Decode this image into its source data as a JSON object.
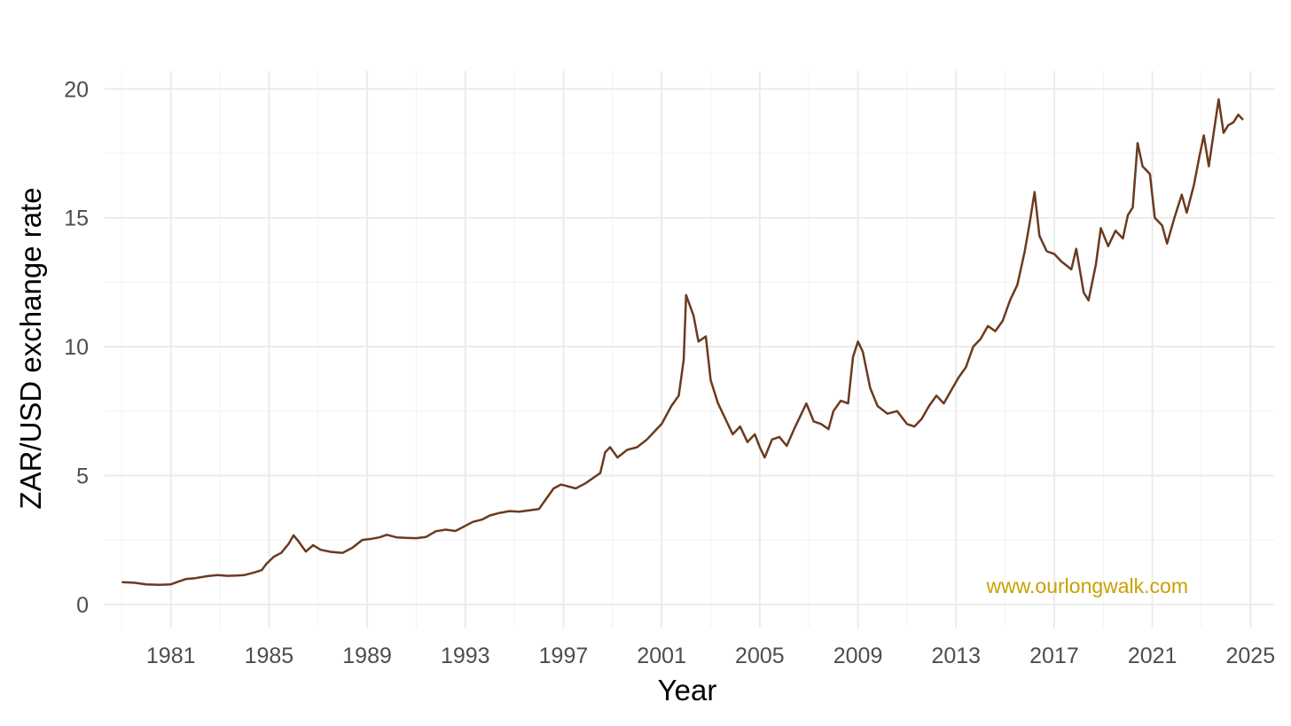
{
  "chart_data": {
    "type": "line",
    "title": "",
    "xlabel": "Year",
    "ylabel": "ZAR/USD exchange rate",
    "xlim": [
      1978.3,
      2026.0
    ],
    "ylim": [
      -0.9,
      20.7
    ],
    "x_ticks": [
      1981,
      1985,
      1989,
      1993,
      1997,
      2001,
      2005,
      2009,
      2013,
      2017,
      2021,
      2025
    ],
    "x_tick_labels": [
      "1981",
      "1985",
      "1989",
      "1993",
      "1997",
      "2001",
      "2005",
      "2009",
      "2013",
      "2017",
      "2021",
      "2025"
    ],
    "y_ticks": [
      0,
      5,
      10,
      15,
      20
    ],
    "y_tick_labels": [
      "0",
      "5",
      "10",
      "15",
      "20"
    ],
    "grid": true,
    "legend": "none",
    "series": [
      {
        "color": "#6b3a1f",
        "x": [
          1979.0,
          1979.5,
          1980.0,
          1980.5,
          1981.0,
          1981.3,
          1981.6,
          1982.0,
          1982.5,
          1982.9,
          1983.3,
          1983.7,
          1984.0,
          1984.4,
          1984.7,
          1984.9,
          1985.2,
          1985.5,
          1985.8,
          1986.0,
          1986.2,
          1986.5,
          1986.8,
          1987.1,
          1987.5,
          1988.0,
          1988.4,
          1988.8,
          1989.2,
          1989.5,
          1989.8,
          1990.2,
          1990.6,
          1991.0,
          1991.4,
          1991.8,
          1992.2,
          1992.6,
          1993.0,
          1993.3,
          1993.7,
          1994.0,
          1994.4,
          1994.8,
          1995.2,
          1995.6,
          1996.0,
          1996.3,
          1996.6,
          1996.9,
          1997.1,
          1997.5,
          1997.9,
          1998.2,
          1998.5,
          1998.7,
          1998.9,
          1999.2,
          1999.6,
          2000.0,
          2000.4,
          2000.8,
          2001.0,
          2001.4,
          2001.7,
          2001.9,
          2002.0,
          2002.3,
          2002.5,
          2002.8,
          2003.0,
          2003.3,
          2003.6,
          2003.9,
          2004.2,
          2004.5,
          2004.8,
          2005.0,
          2005.2,
          2005.5,
          2005.8,
          2006.1,
          2006.4,
          2006.7,
          2006.9,
          2007.2,
          2007.5,
          2007.8,
          2008.0,
          2008.3,
          2008.6,
          2008.8,
          2009.0,
          2009.2,
          2009.5,
          2009.8,
          2010.2,
          2010.6,
          2011.0,
          2011.3,
          2011.6,
          2011.9,
          2012.2,
          2012.5,
          2012.8,
          2013.1,
          2013.4,
          2013.7,
          2014.0,
          2014.3,
          2014.6,
          2014.9,
          2015.2,
          2015.5,
          2015.8,
          2016.0,
          2016.2,
          2016.4,
          2016.7,
          2017.0,
          2017.3,
          2017.7,
          2017.9,
          2018.2,
          2018.4,
          2018.7,
          2018.9,
          2019.2,
          2019.5,
          2019.8,
          2020.0,
          2020.2,
          2020.4,
          2020.6,
          2020.9,
          2021.1,
          2021.4,
          2021.6,
          2021.9,
          2022.2,
          2022.4,
          2022.7,
          2022.9,
          2023.1,
          2023.3,
          2023.5,
          2023.7,
          2023.9,
          2024.1,
          2024.3,
          2024.5,
          2024.7
        ],
        "y": [
          0.86,
          0.84,
          0.78,
          0.76,
          0.78,
          0.88,
          0.98,
          1.02,
          1.1,
          1.14,
          1.11,
          1.12,
          1.14,
          1.24,
          1.33,
          1.58,
          1.85,
          2.0,
          2.35,
          2.68,
          2.45,
          2.05,
          2.3,
          2.12,
          2.04,
          2.0,
          2.2,
          2.5,
          2.55,
          2.6,
          2.7,
          2.6,
          2.58,
          2.57,
          2.62,
          2.84,
          2.9,
          2.85,
          3.05,
          3.2,
          3.3,
          3.45,
          3.55,
          3.62,
          3.6,
          3.65,
          3.7,
          4.1,
          4.5,
          4.65,
          4.6,
          4.5,
          4.7,
          4.9,
          5.1,
          5.9,
          6.1,
          5.7,
          6.0,
          6.1,
          6.4,
          6.8,
          7.0,
          7.7,
          8.1,
          9.5,
          12.0,
          11.2,
          10.2,
          10.4,
          8.7,
          7.8,
          7.2,
          6.6,
          6.9,
          6.3,
          6.6,
          6.1,
          5.7,
          6.4,
          6.5,
          6.15,
          6.8,
          7.4,
          7.8,
          7.1,
          7.0,
          6.8,
          7.5,
          7.9,
          7.8,
          9.6,
          10.2,
          9.8,
          8.4,
          7.7,
          7.4,
          7.5,
          7.0,
          6.9,
          7.2,
          7.7,
          8.1,
          7.8,
          8.3,
          8.8,
          9.2,
          10.0,
          10.3,
          10.8,
          10.6,
          11.0,
          11.8,
          12.4,
          13.7,
          14.8,
          16.0,
          14.3,
          13.7,
          13.6,
          13.3,
          13.0,
          13.8,
          12.1,
          11.8,
          13.2,
          14.6,
          13.9,
          14.5,
          14.2,
          15.1,
          15.4,
          17.9,
          17.0,
          16.7,
          15.0,
          14.7,
          14.0,
          15.0,
          15.9,
          15.2,
          16.3,
          17.3,
          18.2,
          17.0,
          18.3,
          19.6,
          18.3,
          18.6,
          18.7,
          19.0,
          18.8
        ]
      }
    ],
    "annotations": [
      {
        "text": "www.ourlongwalk.com",
        "color": "#c9a000"
      }
    ]
  }
}
